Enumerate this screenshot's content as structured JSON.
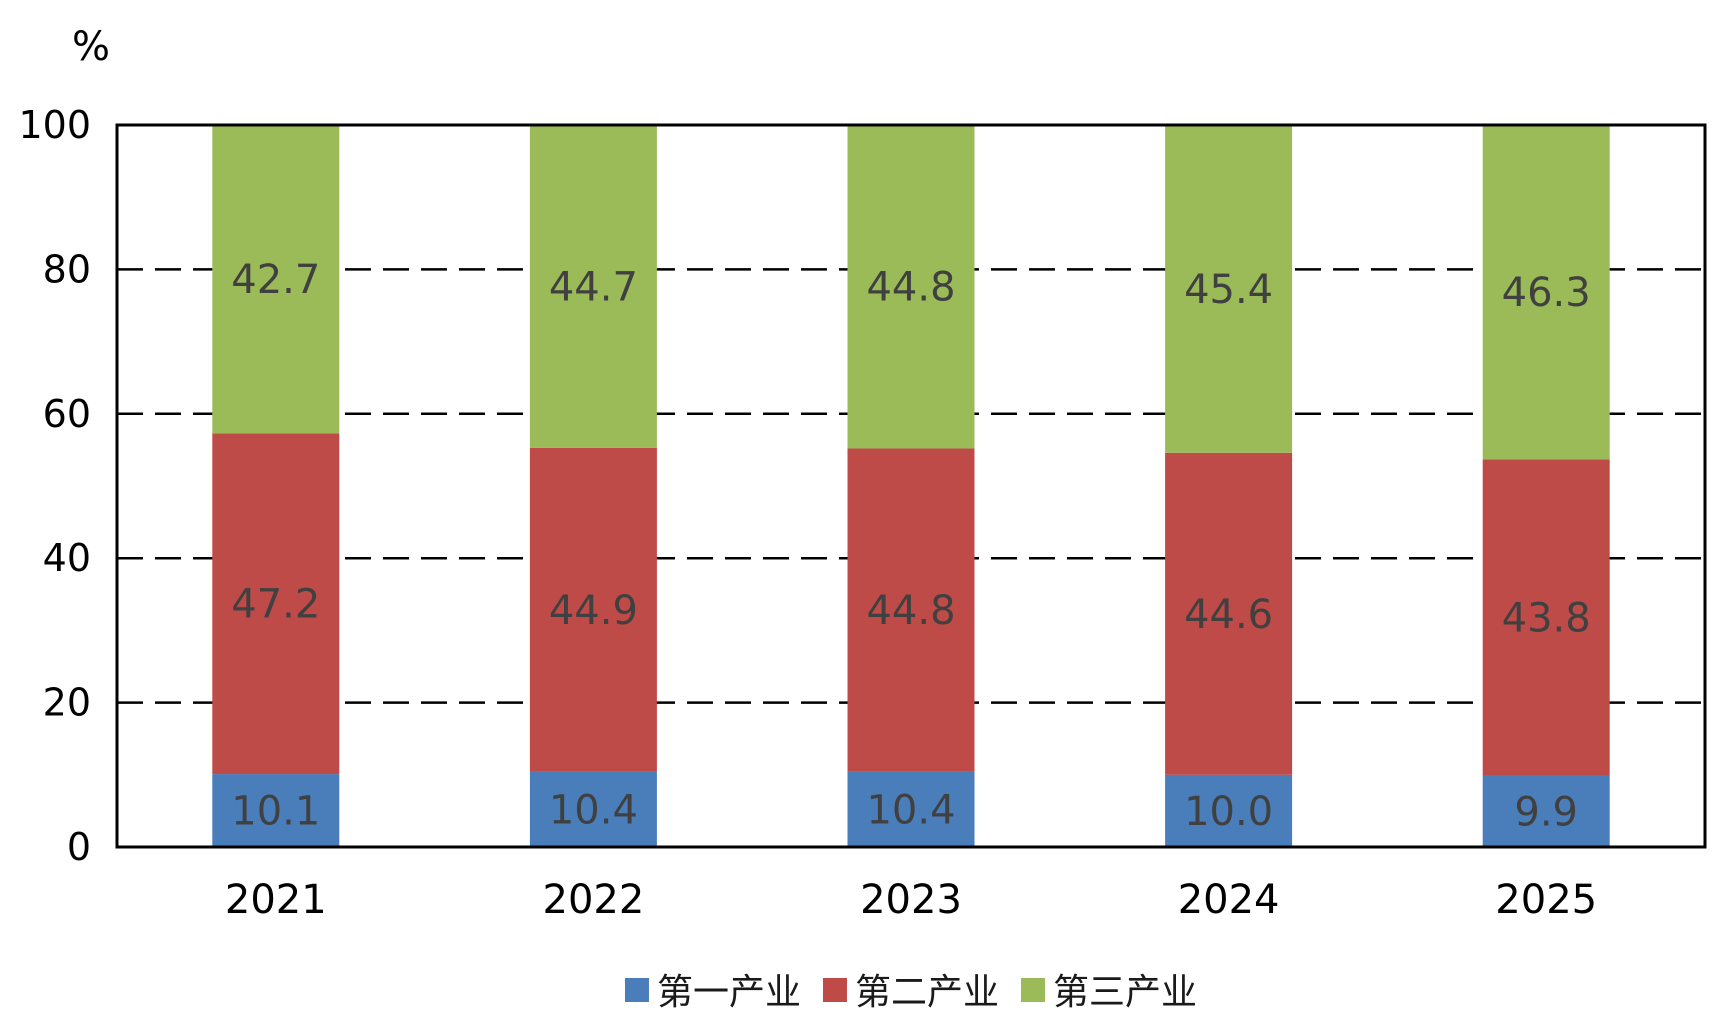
{
  "chart_data": {
    "type": "bar",
    "stacked": true,
    "unit_label": "%",
    "categories": [
      "2021",
      "2022",
      "2023",
      "2024",
      "2025"
    ],
    "series": [
      {
        "name": "第一产业",
        "color": "#4a7ebb",
        "values": [
          10.1,
          10.4,
          10.4,
          10.0,
          9.9
        ]
      },
      {
        "name": "第二产业",
        "color": "#be4b48",
        "values": [
          47.2,
          44.9,
          44.8,
          44.6,
          43.8
        ]
      },
      {
        "name": "第三产业",
        "color": "#9bbb59",
        "values": [
          42.7,
          44.7,
          44.8,
          45.4,
          46.3
        ]
      }
    ],
    "ylim": [
      0,
      100
    ],
    "yticks": [
      0,
      20,
      40,
      60,
      80,
      100
    ],
    "grid": "horizontal-dashed",
    "legend_position": "bottom-center"
  }
}
